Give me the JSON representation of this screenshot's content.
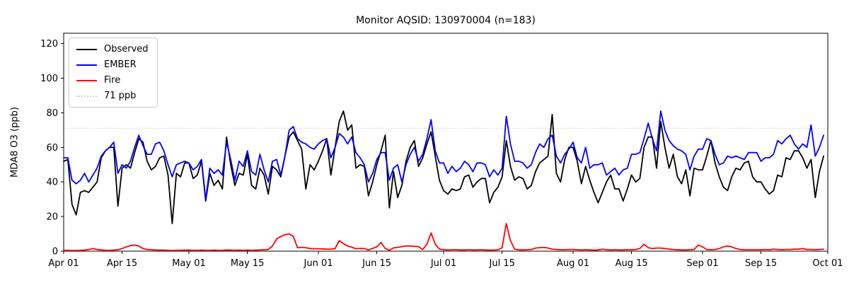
{
  "chart_data": {
    "type": "line",
    "title": "Monitor AQSID: 130970004 (n=183)",
    "ylabel": "MDA8 O3 (ppb)",
    "xlabel": "",
    "ylim": [
      0,
      126
    ],
    "yticks": [
      0,
      20,
      40,
      60,
      80,
      100,
      120
    ],
    "xtick_labels": [
      "Apr 01",
      "Apr 15",
      "May 01",
      "May 15",
      "Jun 01",
      "Jun 15",
      "Jul 01",
      "Jul 15",
      "Aug 01",
      "Aug 15",
      "Sep 01",
      "Sep 15",
      "Oct 01"
    ],
    "xtick_day_offsets": [
      0,
      14,
      30,
      44,
      61,
      75,
      91,
      105,
      122,
      136,
      153,
      167,
      183
    ],
    "n_points": 183,
    "grid": false,
    "legend_position": "upper left",
    "reference_line": {
      "label": "71 ppb",
      "value": 71,
      "color": "#d3d3d3",
      "style": "dotted"
    },
    "legend": [
      {
        "label": "Observed",
        "color": "#000000",
        "dotted": false
      },
      {
        "label": "EMBER",
        "color": "#0000ff",
        "dotted": false
      },
      {
        "label": "Fire",
        "color": "#ff0000",
        "dotted": false
      },
      {
        "label": "71 ppb",
        "color": "#d3d3d3",
        "dotted": true
      }
    ],
    "series": [
      {
        "name": "Observed",
        "color": "#000000",
        "values": [
          52,
          53,
          27,
          21,
          34,
          35,
          34,
          37,
          40,
          54,
          58,
          60,
          60,
          26,
          48,
          50,
          48,
          57,
          65,
          63,
          52,
          47,
          49,
          54,
          55,
          44,
          16,
          45,
          43,
          51,
          51,
          42,
          44,
          52,
          29,
          45,
          38,
          41,
          36,
          66,
          50,
          38,
          45,
          44,
          56,
          38,
          36,
          48,
          44,
          33,
          49,
          47,
          43,
          55,
          66,
          69,
          64,
          59,
          36,
          50,
          47,
          52,
          58,
          65,
          44,
          60,
          75,
          81,
          70,
          73,
          48,
          50,
          49,
          32,
          40,
          50,
          58,
          67,
          25,
          46,
          31,
          38,
          52,
          60,
          64,
          49,
          54,
          62,
          69,
          55,
          41,
          35,
          33,
          36,
          35,
          36,
          43,
          44,
          37,
          40,
          42,
          42,
          28,
          34,
          37,
          43,
          64,
          49,
          41,
          43,
          42,
          36,
          38,
          46,
          51,
          53,
          55,
          79,
          45,
          40,
          53,
          60,
          60,
          52,
          39,
          49,
          41,
          34,
          28,
          34,
          40,
          44,
          36,
          36,
          29,
          36,
          44,
          40,
          42,
          60,
          66,
          66,
          48,
          75,
          60,
          48,
          56,
          43,
          39,
          47,
          32,
          48,
          47,
          47,
          55,
          64,
          51,
          43,
          37,
          35,
          43,
          48,
          47,
          51,
          52,
          43,
          40,
          40,
          36,
          33,
          35,
          44,
          43,
          54,
          53,
          58,
          58,
          54,
          48,
          53,
          31,
          46,
          55
        ]
      },
      {
        "name": "EMBER",
        "color": "#0000ff",
        "values": [
          54,
          54,
          41,
          39,
          41,
          45,
          40,
          44,
          48,
          55,
          58,
          60,
          63,
          45,
          50,
          48,
          52,
          60,
          67,
          61,
          56,
          56,
          62,
          63,
          58,
          50,
          43,
          50,
          51,
          52,
          51,
          47,
          49,
          53,
          30,
          48,
          45,
          47,
          44,
          63,
          53,
          41,
          52,
          49,
          58,
          46,
          44,
          56,
          47,
          40,
          52,
          53,
          44,
          55,
          70,
          72,
          65,
          63,
          62,
          60,
          59,
          62,
          64,
          65,
          54,
          60,
          68,
          66,
          62,
          66,
          57,
          54,
          50,
          40,
          45,
          53,
          57,
          57,
          41,
          48,
          50,
          40,
          50,
          56,
          60,
          52,
          56,
          65,
          76,
          58,
          51,
          51,
          45,
          49,
          46,
          48,
          52,
          50,
          46,
          51,
          51,
          50,
          43,
          47,
          44,
          48,
          78,
          62,
          52,
          52,
          51,
          48,
          50,
          57,
          62,
          60,
          65,
          67,
          55,
          51,
          56,
          59,
          63,
          54,
          51,
          60,
          48,
          50,
          50,
          51,
          44,
          46,
          48,
          44,
          47,
          48,
          56,
          56,
          57,
          65,
          74,
          65,
          58,
          81,
          70,
          64,
          61,
          59,
          58,
          56,
          47,
          55,
          59,
          59,
          65,
          64,
          56,
          50,
          51,
          55,
          54,
          55,
          54,
          53,
          57,
          57,
          57,
          52,
          54,
          54,
          56,
          64,
          62,
          65,
          67,
          62,
          59,
          62,
          60,
          73,
          55,
          60,
          67
        ]
      },
      {
        "name": "Fire",
        "color": "#ff0000",
        "values": [
          0.5,
          0.5,
          0.4,
          0.4,
          0.5,
          0.6,
          1.0,
          1.5,
          1.0,
          0.7,
          0.5,
          0.5,
          0.6,
          0.8,
          1.5,
          2.5,
          3.2,
          3.5,
          3.0,
          1.5,
          1.0,
          0.8,
          0.7,
          0.6,
          0.6,
          0.5,
          0.4,
          0.5,
          0.5,
          0.6,
          0.6,
          0.5,
          0.5,
          0.6,
          0.5,
          0.5,
          0.6,
          0.5,
          0.5,
          0.7,
          0.6,
          0.5,
          0.6,
          0.5,
          0.6,
          0.5,
          0.6,
          0.7,
          0.8,
          1.0,
          3.0,
          7.0,
          8.5,
          9.5,
          10.0,
          8.5,
          2.0,
          2.2,
          2.0,
          1.5,
          1.4,
          1.4,
          1.3,
          1.2,
          1.2,
          1.5,
          6.0,
          4.4,
          3.0,
          2.3,
          1.4,
          1.6,
          1.5,
          0.7,
          1.6,
          2.5,
          5.0,
          1.6,
          0.5,
          1.9,
          2.2,
          2.6,
          3.0,
          3.0,
          2.8,
          2.6,
          1.0,
          4.0,
          10.5,
          4.0,
          1.2,
          0.8,
          0.7,
          0.8,
          0.8,
          0.7,
          0.7,
          0.8,
          0.7,
          0.7,
          0.8,
          0.7,
          0.6,
          0.6,
          0.8,
          2.0,
          16.0,
          6.0,
          1.2,
          0.8,
          0.7,
          0.8,
          1.0,
          1.8,
          2.0,
          2.2,
          1.8,
          1.2,
          1.0,
          0.8,
          0.8,
          1.0,
          1.0,
          0.8,
          0.7,
          0.8,
          0.7,
          0.6,
          0.7,
          1.2,
          0.8,
          0.7,
          0.8,
          0.7,
          0.7,
          0.8,
          0.8,
          1.0,
          1.5,
          4.0,
          2.0,
          1.5,
          1.8,
          1.8,
          1.5,
          1.2,
          1.0,
          0.8,
          0.7,
          0.7,
          0.8,
          1.0,
          3.5,
          2.5,
          1.0,
          0.8,
          1.0,
          1.5,
          2.5,
          3.0,
          2.5,
          1.5,
          1.0,
          0.8,
          0.8,
          0.8,
          0.8,
          0.8,
          1.0,
          0.8,
          1.2,
          1.0,
          0.8,
          1.0,
          1.0,
          1.2,
          1.2,
          1.5,
          1.0,
          1.0,
          0.8,
          1.0,
          1.2
        ]
      }
    ]
  }
}
